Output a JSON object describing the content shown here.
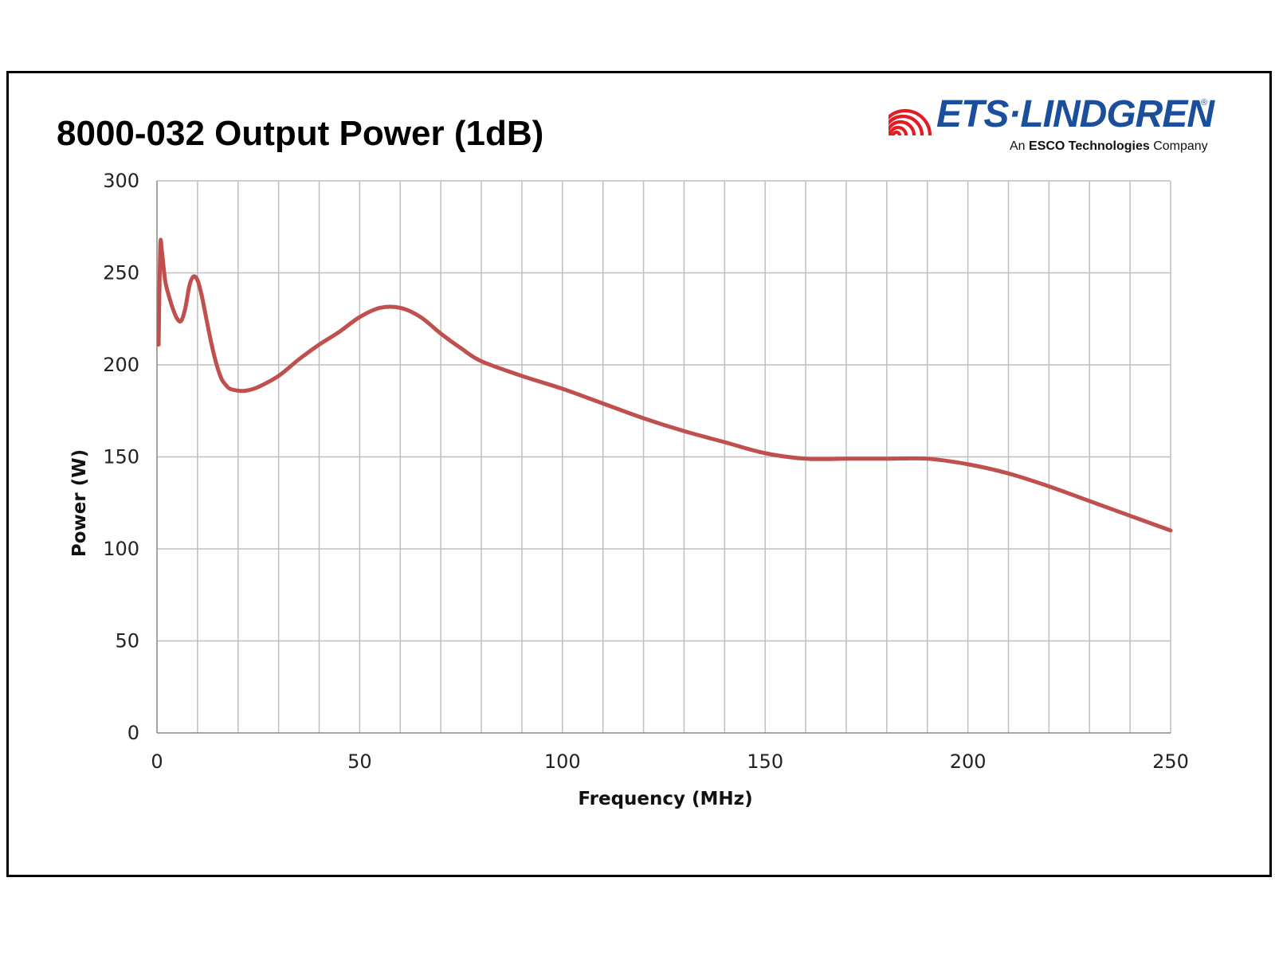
{
  "logo": {
    "name": "ETS·LINDGREN",
    "registered_mark": "®",
    "tagline_prefix": "An ",
    "tagline_bold": "ESCO Technologies",
    "tagline_suffix": " Company",
    "brand_color": "#1b4f9c",
    "wave_color": "#e31b23"
  },
  "colors": {
    "series": "#c0504d",
    "grid": "#bfbfbf",
    "axis": "#868686"
  },
  "chart_data": {
    "type": "line",
    "title": "8000-032 Output Power (1dB)",
    "xlabel": "Frequency (MHz)",
    "ylabel": "Power (W)",
    "xlim": [
      0,
      250
    ],
    "ylim": [
      0,
      300
    ],
    "x_ticks": [
      0,
      50,
      100,
      150,
      200,
      250
    ],
    "y_ticks": [
      0,
      50,
      100,
      150,
      200,
      250,
      300
    ],
    "x_tick_labels": [
      "0",
      "50",
      "100",
      "150",
      "200",
      "250"
    ],
    "y_tick_labels": [
      "0",
      "50",
      "100",
      "150",
      "200",
      "250",
      "300"
    ],
    "x_minor_step": 10,
    "grid": true,
    "legend": "none",
    "series": [
      {
        "x": [
          0.4,
          0.8,
          1.2,
          2,
          3,
          4,
          5,
          6,
          7,
          8,
          9,
          10,
          11,
          12,
          13,
          14,
          15,
          16,
          17,
          18,
          20,
          22,
          25,
          30,
          35,
          40,
          45,
          50,
          55,
          60,
          65,
          70,
          75,
          80,
          90,
          100,
          110,
          120,
          130,
          140,
          150,
          160,
          170,
          180,
          190,
          200,
          210,
          220,
          230,
          240,
          250
        ],
        "y": [
          211,
          264,
          262,
          246,
          237,
          230,
          225,
          224,
          231,
          243,
          248,
          246,
          238,
          227,
          216,
          206,
          198,
          192,
          189,
          187,
          186,
          186,
          188,
          194,
          203,
          211,
          218,
          226,
          231,
          231,
          226,
          217,
          209,
          202,
          194,
          187,
          179,
          171,
          164,
          158,
          152,
          149,
          149,
          149,
          149,
          146,
          141,
          134,
          126,
          118,
          110
        ]
      }
    ]
  }
}
